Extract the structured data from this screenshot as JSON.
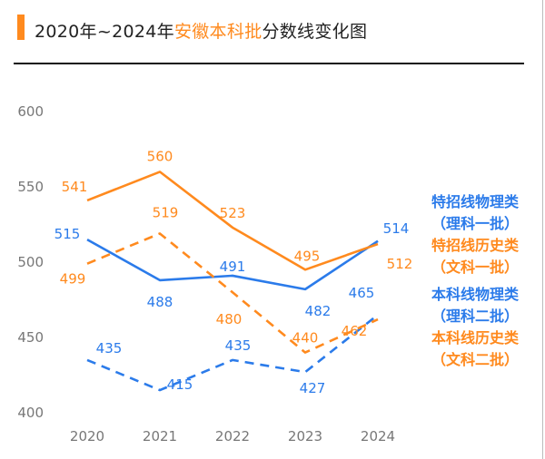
{
  "title": {
    "part1": "2020年~2024年",
    "highlight": "安徽本科批",
    "part2": "分数线变化图"
  },
  "colors": {
    "blue": "#2B7BEA",
    "orange": "#FF8A1E",
    "title_bar": "#FF8A1E"
  },
  "chart_data": {
    "type": "line",
    "title": "2020年~2024年安徽本科批分数线变化图",
    "categories": [
      "2020",
      "2021",
      "2022",
      "2023",
      "2024"
    ],
    "ylim": [
      400,
      600
    ],
    "yticks": [
      600,
      550,
      500,
      450,
      400
    ],
    "grid": false,
    "legend": "right",
    "series": [
      {
        "name": "特招线物理类",
        "sub": "（理科一批）",
        "color": "#2B7BEA",
        "style": "solid",
        "values": [
          515,
          488,
          491,
          482,
          514
        ]
      },
      {
        "name": "特招线历史类",
        "sub": "（文科一批）",
        "color": "#FF8A1E",
        "style": "solid",
        "values": [
          541,
          560,
          523,
          495,
          512
        ]
      },
      {
        "name": "本科线物理类",
        "sub": "（理科二批）",
        "color": "#2B7BEA",
        "style": "dashed",
        "values": [
          435,
          415,
          435,
          427,
          465
        ]
      },
      {
        "name": "本科线历史类",
        "sub": "（文科二批）",
        "color": "#FF8A1E",
        "style": "dashed",
        "values": [
          499,
          519,
          480,
          440,
          462
        ]
      }
    ]
  }
}
